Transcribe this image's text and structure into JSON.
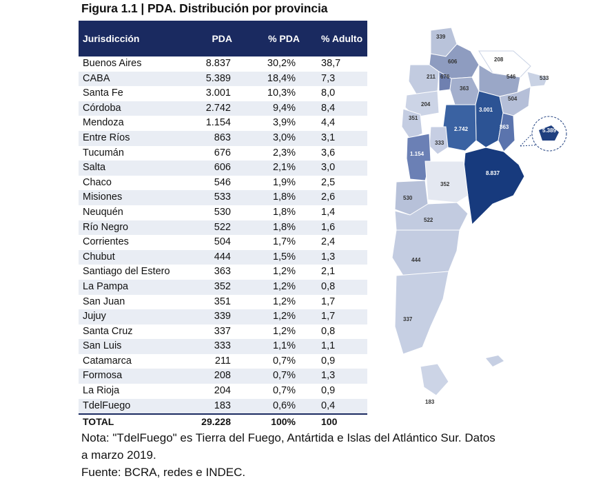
{
  "title": "Figura 1.1 | PDA. Distribución por provincia",
  "table": {
    "headers": [
      "Jurisdicción",
      "PDA",
      "% PDA",
      "% Adulto"
    ],
    "rows": [
      [
        "Buenos Aires",
        "8.837",
        "30,2%",
        "38,7"
      ],
      [
        "CABA",
        "5.389",
        "18,4%",
        "7,3"
      ],
      [
        "Santa Fe",
        "3.001",
        "10,3%",
        "8,0"
      ],
      [
        "Córdoba",
        "2.742",
        "9,4%",
        "8,4"
      ],
      [
        "Mendoza",
        "1.154",
        "3,9%",
        "4,4"
      ],
      [
        "Entre Ríos",
        "863",
        "3,0%",
        "3,1"
      ],
      [
        "Tucumán",
        "676",
        "2,3%",
        "3,6"
      ],
      [
        "Salta",
        "606",
        "2,1%",
        "3,0"
      ],
      [
        "Chaco",
        "546",
        "1,9%",
        "2,5"
      ],
      [
        "Misiones",
        "533",
        "1,8%",
        "2,6"
      ],
      [
        "Neuquén",
        "530",
        "1,8%",
        "1,4"
      ],
      [
        "Río Negro",
        "522",
        "1,8%",
        "1,6"
      ],
      [
        "Corrientes",
        "504",
        "1,7%",
        "2,4"
      ],
      [
        "Chubut",
        "444",
        "1,5%",
        "1,3"
      ],
      [
        "Santiago del Estero",
        "363",
        "1,2%",
        "2,1"
      ],
      [
        "La Pampa",
        "352",
        "1,2%",
        "0,8"
      ],
      [
        "San Juan",
        "351",
        "1,2%",
        "1,7"
      ],
      [
        "Jujuy",
        "339",
        "1,2%",
        "1,7"
      ],
      [
        "Santa Cruz",
        "337",
        "1,2%",
        "0,8"
      ],
      [
        "San Luis",
        "333",
        "1,1%",
        "1,1"
      ],
      [
        "Catamarca",
        "211",
        "0,7%",
        "0,9"
      ],
      [
        "Formosa",
        "208",
        "0,7%",
        "1,3"
      ],
      [
        "La Rioja",
        "204",
        "0,7%",
        "0,9"
      ],
      [
        "TdelFuego",
        "183",
        "0,6%",
        "0,4"
      ]
    ],
    "total": [
      "TOTAL",
      "29.228",
      "100%",
      "100"
    ]
  },
  "map": {
    "labels": [
      "339",
      "208",
      "606",
      "546",
      "533",
      "211",
      "676",
      "363",
      "504",
      "204",
      "3.001",
      "351",
      "2.742",
      "863",
      "5.389",
      "333",
      "1.154",
      "8.837",
      "352",
      "530",
      "522",
      "444",
      "337",
      "183"
    ]
  },
  "note": {
    "line1": "Nota: \"TdelFuego\" es Tierra del Fuego, Antártida e Islas del Atlántico Sur. Datos",
    "line2": "a marzo 2019.",
    "line3": "Fuente: BCRA, redes e INDEC."
  },
  "colors": {
    "header": "#1a2a60",
    "row_alt": "#e9edf4",
    "map_dark": "#1f3f7f",
    "map_light": "#c9d2e4"
  }
}
